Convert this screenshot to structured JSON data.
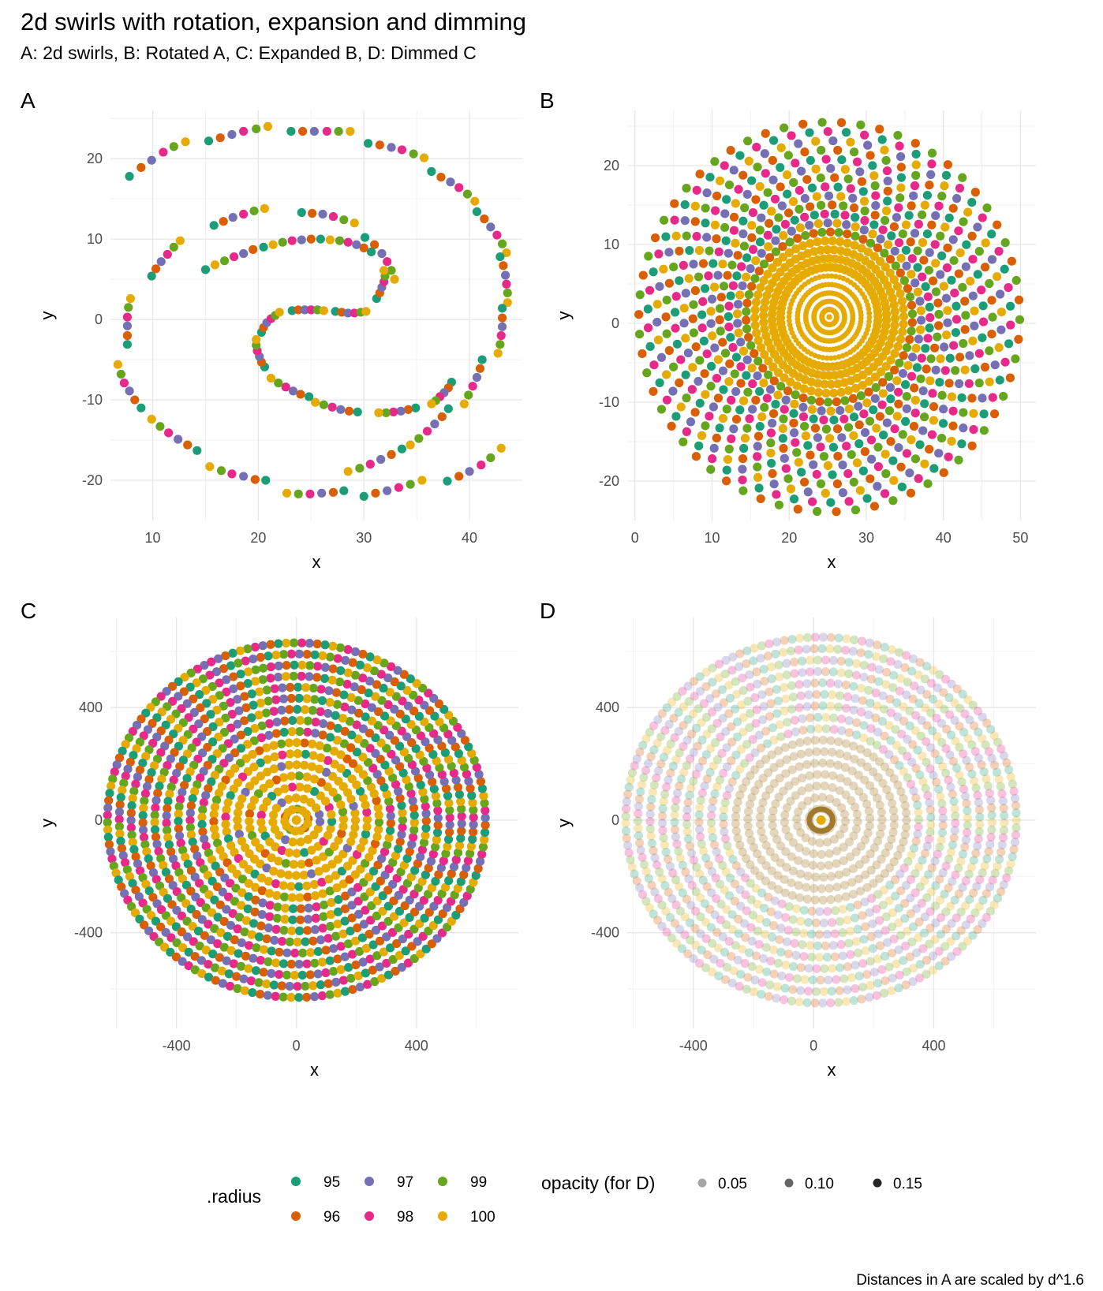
{
  "header": {
    "title": "2d swirls with rotation, expansion and dimming",
    "subtitle": "A: 2d swirls,  B: Rotated A, C: Expanded B, D: Dimmed C",
    "caption": "Distances in A are scaled by d^1.6"
  },
  "colors": {
    "95": "#1b9e77",
    "96": "#d95f02",
    "97": "#7570b3",
    "98": "#e7298a",
    "99": "#66a61e",
    "100": "#e6ab02"
  },
  "chart_data": [
    {
      "panel": "A",
      "type": "scatter",
      "xlabel": "x",
      "ylabel": "y",
      "xlim": [
        6,
        45
      ],
      "ylim": [
        -25,
        26
      ],
      "xticks": [
        10,
        20,
        30,
        40
      ],
      "yticks": [
        -20,
        -10,
        0,
        10,
        20
      ],
      "series_note": "two interleaved spiral arms; points grouped in runs of .radius 95-100",
      "outer_arm": [
        [
          7.8,
          17.8
        ],
        [
          8.9,
          18.9
        ],
        [
          9.9,
          19.8
        ],
        [
          11.0,
          20.8
        ],
        [
          12.0,
          21.5
        ],
        [
          13.1,
          22.1
        ],
        [
          15.3,
          22.2
        ],
        [
          16.4,
          22.6
        ],
        [
          17.5,
          23.0
        ],
        [
          18.6,
          23.4
        ],
        [
          19.8,
          23.7
        ],
        [
          20.9,
          24.0
        ],
        [
          23.1,
          23.4
        ],
        [
          24.2,
          23.4
        ],
        [
          25.3,
          23.4
        ],
        [
          26.5,
          23.4
        ],
        [
          27.6,
          23.4
        ],
        [
          28.7,
          23.4
        ],
        [
          30.4,
          21.9
        ],
        [
          31.5,
          21.7
        ],
        [
          32.6,
          21.4
        ],
        [
          33.6,
          21.1
        ],
        [
          34.7,
          20.6
        ],
        [
          35.7,
          20.1
        ],
        [
          36.4,
          18.4
        ],
        [
          37.3,
          17.7
        ],
        [
          38.2,
          17.1
        ],
        [
          39.0,
          16.4
        ],
        [
          39.8,
          15.6
        ],
        [
          40.5,
          14.7
        ],
        [
          40.7,
          13.4
        ],
        [
          41.4,
          12.5
        ],
        [
          42.0,
          11.5
        ],
        [
          42.6,
          10.5
        ],
        [
          43.1,
          9.4
        ],
        [
          43.5,
          8.3
        ],
        [
          42.9,
          7.8
        ],
        [
          43.2,
          6.7
        ],
        [
          43.4,
          5.5
        ],
        [
          43.5,
          4.4
        ],
        [
          43.6,
          3.3
        ],
        [
          43.6,
          2.1
        ],
        [
          43.1,
          1.4
        ],
        [
          43.1,
          0.2
        ],
        [
          43.1,
          -0.9
        ],
        [
          43.0,
          -2.0
        ],
        [
          42.9,
          -3.1
        ],
        [
          42.7,
          -4.2
        ],
        [
          41.2,
          -5.0
        ],
        [
          41.0,
          -6.1
        ],
        [
          40.7,
          -7.2
        ],
        [
          40.3,
          -8.3
        ],
        [
          39.9,
          -9.4
        ],
        [
          39.5,
          -10.5
        ],
        [
          38.0,
          -11.1
        ],
        [
          37.4,
          -12.1
        ],
        [
          36.7,
          -13.0
        ],
        [
          36.0,
          -13.9
        ],
        [
          35.2,
          -14.8
        ],
        [
          34.4,
          -15.6
        ],
        [
          33.6,
          -16.1
        ],
        [
          32.6,
          -16.8
        ],
        [
          31.6,
          -17.4
        ],
        [
          30.6,
          -18.0
        ],
        [
          29.6,
          -18.5
        ],
        [
          28.5,
          -18.9
        ],
        [
          28.1,
          -21.3
        ],
        [
          27.1,
          -21.5
        ],
        [
          26.0,
          -21.6
        ],
        [
          24.9,
          -21.7
        ],
        [
          23.8,
          -21.7
        ],
        [
          22.7,
          -21.6
        ],
        [
          20.7,
          -20.0
        ],
        [
          19.7,
          -19.9
        ],
        [
          18.6,
          -19.5
        ],
        [
          17.5,
          -19.2
        ],
        [
          16.5,
          -18.8
        ],
        [
          15.4,
          -18.3
        ],
        [
          14.2,
          -16.3
        ],
        [
          13.3,
          -15.6
        ],
        [
          12.4,
          -14.9
        ],
        [
          11.5,
          -14.1
        ],
        [
          10.7,
          -13.3
        ],
        [
          9.9,
          -12.4
        ],
        [
          8.9,
          -11.0
        ],
        [
          8.3,
          -10.0
        ],
        [
          7.8,
          -8.9
        ],
        [
          7.3,
          -7.9
        ],
        [
          7.0,
          -6.8
        ],
        [
          6.7,
          -5.6
        ],
        [
          7.6,
          -3.1
        ],
        [
          7.6,
          -2.0
        ],
        [
          7.6,
          -0.8
        ],
        [
          7.6,
          0.3
        ],
        [
          7.7,
          1.5
        ],
        [
          7.9,
          2.6
        ],
        [
          9.9,
          5.4
        ],
        [
          10.3,
          6.3
        ],
        [
          10.8,
          7.2
        ],
        [
          11.4,
          8.1
        ],
        [
          12.0,
          9.0
        ],
        [
          12.6,
          9.8
        ],
        [
          15.8,
          11.7
        ],
        [
          16.7,
          12.2
        ],
        [
          17.6,
          12.7
        ],
        [
          18.6,
          13.1
        ],
        [
          19.6,
          13.5
        ],
        [
          20.6,
          13.8
        ],
        [
          24.1,
          13.3
        ],
        [
          25.1,
          13.2
        ],
        [
          26.1,
          13.1
        ],
        [
          27.1,
          12.8
        ],
        [
          28.1,
          12.4
        ],
        [
          29.1,
          12.0
        ],
        [
          30.1,
          10.2
        ],
        [
          31.0,
          9.3
        ],
        [
          31.7,
          8.2
        ],
        [
          32.2,
          7.2
        ],
        [
          32.6,
          6.1
        ],
        [
          32.9,
          5.0
        ]
      ],
      "inner_arm": [
        [
          30.0,
          -22.0
        ],
        [
          31.1,
          -21.6
        ],
        [
          32.2,
          -21.3
        ],
        [
          33.3,
          -20.9
        ],
        [
          34.4,
          -20.5
        ],
        [
          35.5,
          -20.0
        ],
        [
          37.9,
          -20.1
        ],
        [
          39.0,
          -19.5
        ],
        [
          40.0,
          -18.9
        ],
        [
          41.1,
          -18.1
        ],
        [
          42.0,
          -17.2
        ],
        [
          43.0,
          -16.0
        ],
        [
          38.3,
          -7.8
        ],
        [
          38.0,
          -8.5
        ],
        [
          37.6,
          -9.1
        ],
        [
          37.2,
          -9.6
        ],
        [
          36.8,
          -10.1
        ],
        [
          36.4,
          -10.5
        ],
        [
          34.9,
          -11.0
        ],
        [
          34.2,
          -11.2
        ],
        [
          33.5,
          -11.4
        ],
        [
          32.8,
          -11.5
        ],
        [
          32.1,
          -11.6
        ],
        [
          31.4,
          -11.6
        ],
        [
          29.4,
          -11.5
        ],
        [
          28.6,
          -11.4
        ],
        [
          27.8,
          -11.2
        ],
        [
          27.0,
          -10.9
        ],
        [
          26.2,
          -10.6
        ],
        [
          25.4,
          -10.3
        ],
        [
          24.8,
          -9.6
        ],
        [
          24.0,
          -9.3
        ],
        [
          23.3,
          -8.9
        ],
        [
          22.6,
          -8.4
        ],
        [
          21.9,
          -7.9
        ],
        [
          21.2,
          -7.3
        ],
        [
          20.6,
          -5.9
        ],
        [
          20.3,
          -5.3
        ],
        [
          20.1,
          -4.6
        ],
        [
          19.9,
          -3.9
        ],
        [
          19.8,
          -3.2
        ],
        [
          19.8,
          -2.5
        ],
        [
          20.3,
          -1.6
        ],
        [
          20.5,
          -1.0
        ],
        [
          20.8,
          -0.4
        ],
        [
          21.2,
          0.1
        ],
        [
          21.6,
          0.5
        ],
        [
          22.0,
          0.9
        ],
        [
          23.2,
          1.1
        ],
        [
          23.8,
          1.2
        ],
        [
          24.4,
          1.2
        ],
        [
          25.0,
          1.2
        ],
        [
          25.6,
          1.2
        ],
        [
          26.2,
          1.1
        ],
        [
          27.3,
          1.0
        ],
        [
          27.9,
          0.9
        ],
        [
          28.5,
          0.8
        ],
        [
          29.1,
          0.8
        ],
        [
          29.7,
          0.9
        ],
        [
          30.2,
          1.0
        ],
        [
          31.2,
          2.6
        ],
        [
          31.5,
          3.3
        ],
        [
          31.7,
          4.0
        ],
        [
          31.9,
          4.7
        ],
        [
          32.0,
          5.4
        ],
        [
          31.9,
          6.1
        ],
        [
          30.7,
          8.4
        ],
        [
          30.0,
          8.9
        ],
        [
          29.3,
          9.3
        ],
        [
          28.5,
          9.6
        ],
        [
          27.7,
          9.8
        ],
        [
          26.8,
          9.9
        ],
        [
          25.9,
          10.0
        ],
        [
          25.0,
          10.0
        ],
        [
          24.1,
          9.9
        ],
        [
          23.2,
          9.8
        ],
        [
          22.3,
          9.6
        ],
        [
          21.4,
          9.3
        ],
        [
          20.5,
          9.0
        ],
        [
          19.5,
          8.7
        ],
        [
          18.6,
          8.2
        ],
        [
          17.7,
          7.8
        ],
        [
          16.8,
          7.3
        ],
        [
          15.9,
          6.8
        ],
        [
          15.0,
          6.2
        ]
      ]
    },
    {
      "panel": "B",
      "type": "scatter",
      "xlabel": "x",
      "ylabel": "y",
      "xlim": [
        -1,
        52
      ],
      "ylim": [
        -25,
        27
      ],
      "xticks": [
        0,
        10,
        20,
        30,
        40,
        50
      ],
      "yticks": [
        -20,
        -10,
        0,
        10,
        20
      ],
      "center": [
        25.2,
        0.8
      ],
      "max_radius": 24.7,
      "series_note": "disc of rotated copies of A, colored by .radius"
    },
    {
      "panel": "C",
      "type": "scatter",
      "xlabel": "x",
      "ylabel": "y",
      "xlim": [
        -620,
        740
      ],
      "ylim": [
        -740,
        720
      ],
      "xticks": [
        -400,
        0,
        400
      ],
      "yticks": [
        -400,
        0,
        400
      ],
      "center": [
        0,
        0
      ],
      "max_radius": 630,
      "series_note": "expanded B: concentric rings colored by .radius"
    },
    {
      "panel": "D",
      "type": "scatter",
      "xlabel": "x",
      "ylabel": "y",
      "xlim": [
        -620,
        740
      ],
      "ylim": [
        -740,
        720
      ],
      "xticks": [
        -400,
        0,
        400
      ],
      "yticks": [
        -400,
        0,
        400
      ],
      "center": [
        25,
        0
      ],
      "max_radius": 650,
      "series_note": "dimmed C: same rings at low opacity"
    }
  ],
  "panels": [
    {
      "tag": "A"
    },
    {
      "tag": "B"
    },
    {
      "tag": "C"
    },
    {
      "tag": "D"
    }
  ],
  "legend": {
    "color_title": ".radius",
    "color_items": [
      "95",
      "96",
      "97",
      "98",
      "99",
      "100"
    ],
    "opacity_title": "opacity (for D)",
    "opacity_items": [
      {
        "label": "0.05",
        "value": 0.05
      },
      {
        "label": "0.10",
        "value": 0.1
      },
      {
        "label": "0.15",
        "value": 0.15
      }
    ]
  }
}
